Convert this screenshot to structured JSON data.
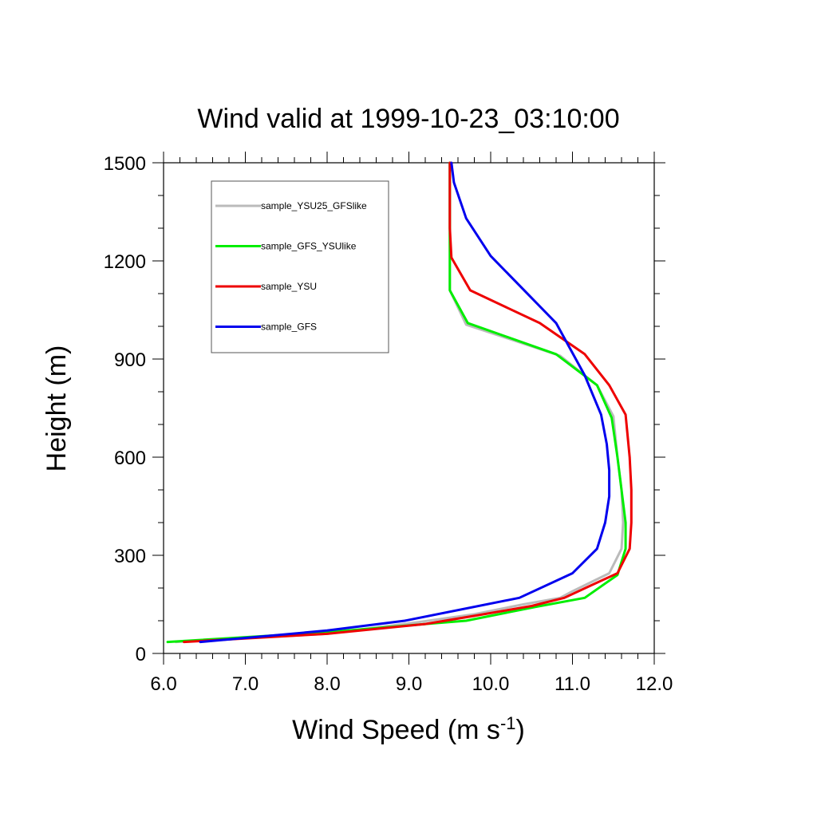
{
  "chart_data": {
    "type": "line",
    "title": "Wind valid at 1999-10-23_03:10:00",
    "xlabel": "Wind Speed (m s",
    "xlabel_sup": "-1",
    "xlabel_tail": ")",
    "ylabel": "Height (m)",
    "xlim": [
      6.0,
      12.0
    ],
    "ylim": [
      0,
      1500
    ],
    "xticks": [
      6.0,
      7.0,
      8.0,
      9.0,
      10.0,
      11.0,
      12.0
    ],
    "xtick_labels": [
      "6.0",
      "7.0",
      "8.0",
      "9.0",
      "10.0",
      "11.0",
      "12.0"
    ],
    "yticks": [
      0,
      300,
      600,
      900,
      1200,
      1500
    ],
    "ytick_labels": [
      "0",
      "300",
      "600",
      "900",
      "1200",
      "1500"
    ],
    "grid": false,
    "legend_position": "top-left",
    "series": [
      {
        "name": "sample_YSU25_GFSlike",
        "color": "#bbbbbb",
        "x": [
          6.15,
          8.0,
          9.1,
          9.8,
          10.4,
          10.85,
          11.0,
          11.45,
          11.6,
          11.62,
          11.6,
          11.55,
          11.5,
          11.3,
          10.85,
          9.7,
          9.5,
          9.5,
          9.5
        ],
        "y": [
          35,
          60,
          95,
          120,
          150,
          170,
          190,
          245,
          320,
          400,
          500,
          600,
          725,
          820,
          910,
          1005,
          1110,
          1200,
          1500
        ]
      },
      {
        "name": "sample_GFS_YSUlike",
        "color": "#00ee00",
        "x": [
          6.05,
          8.0,
          9.2,
          9.7,
          10.5,
          11.15,
          11.55,
          11.65,
          11.65,
          11.6,
          11.55,
          11.48,
          11.3,
          10.8,
          9.72,
          9.5,
          9.5,
          9.5
        ],
        "y": [
          35,
          65,
          90,
          100,
          140,
          170,
          240,
          320,
          400,
          500,
          600,
          720,
          820,
          915,
          1010,
          1110,
          1200,
          1500
        ]
      },
      {
        "name": "sample_YSU",
        "color": "#ee0000",
        "x": [
          6.25,
          8.0,
          9.2,
          9.8,
          10.5,
          10.9,
          11.2,
          11.55,
          11.7,
          11.72,
          11.72,
          11.7,
          11.65,
          11.45,
          11.15,
          10.6,
          9.75,
          9.52,
          9.5,
          9.5
        ],
        "y": [
          35,
          60,
          90,
          115,
          145,
          170,
          205,
          245,
          320,
          400,
          500,
          600,
          730,
          820,
          915,
          1010,
          1110,
          1210,
          1300,
          1500
        ]
      },
      {
        "name": "sample_GFS",
        "color": "#0000ee",
        "x": [
          6.45,
          8.0,
          8.95,
          10.35,
          11.0,
          11.3,
          11.4,
          11.45,
          11.45,
          11.42,
          11.35,
          11.15,
          10.8,
          10.0,
          9.7,
          9.55,
          9.52
        ],
        "y": [
          35,
          70,
          100,
          170,
          245,
          320,
          400,
          480,
          560,
          640,
          730,
          850,
          1010,
          1215,
          1330,
          1440,
          1500
        ]
      }
    ]
  }
}
